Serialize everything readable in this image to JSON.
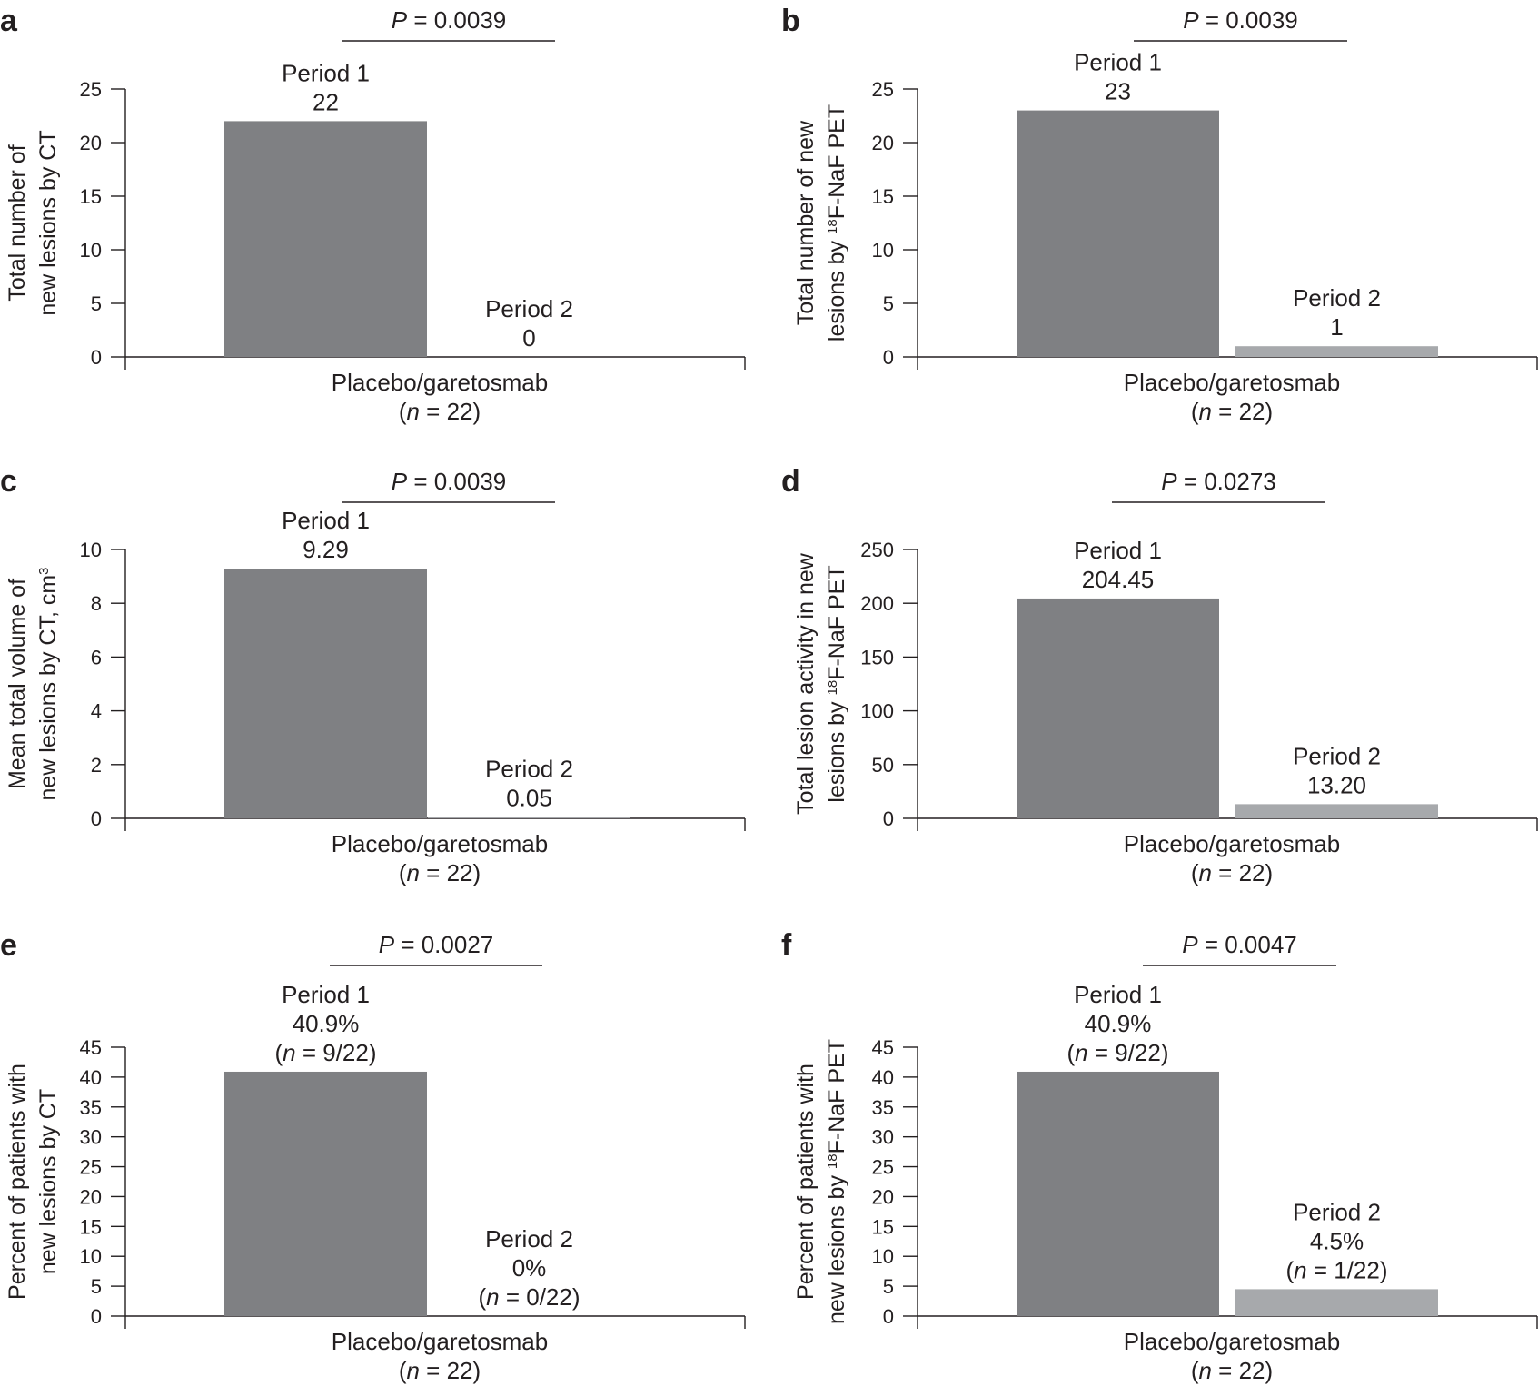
{
  "chart_data": [
    {
      "panel": "a",
      "type": "bar",
      "ylabel": [
        "Total number of",
        "new lesions by CT"
      ],
      "ylim": [
        0,
        25
      ],
      "yticks": [
        0,
        5,
        10,
        15,
        20,
        25
      ],
      "category": [
        "Placebo/garetosmab",
        "(n = 22)"
      ],
      "pvalue": "P = 0.0039",
      "series": [
        {
          "name": "Period 1",
          "value": 22,
          "label": [
            "Period 1",
            "22"
          ]
        },
        {
          "name": "Period 2",
          "value": 0,
          "label": [
            "Period 2",
            "0"
          ]
        }
      ]
    },
    {
      "panel": "b",
      "type": "bar",
      "ylabel": [
        "Total number of new",
        "lesions by 18F-NaF PET"
      ],
      "ylim": [
        0,
        25
      ],
      "yticks": [
        0,
        5,
        10,
        15,
        20,
        25
      ],
      "category": [
        "Placebo/garetosmab",
        "(n = 22)"
      ],
      "pvalue": "P = 0.0039",
      "series": [
        {
          "name": "Period 1",
          "value": 23,
          "label": [
            "Period 1",
            "23"
          ]
        },
        {
          "name": "Period 2",
          "value": 1,
          "label": [
            "Period 2",
            "1"
          ]
        }
      ]
    },
    {
      "panel": "c",
      "type": "bar",
      "ylabel": [
        "Mean total volume of",
        "new lesions by CT, cm3"
      ],
      "ylim": [
        0,
        10
      ],
      "yticks": [
        0,
        2,
        4,
        6,
        8,
        10
      ],
      "category": [
        "Placebo/garetosmab",
        "(n = 22)"
      ],
      "pvalue": "P = 0.0039",
      "series": [
        {
          "name": "Period 1",
          "value": 9.29,
          "label": [
            "Period 1",
            "9.29"
          ]
        },
        {
          "name": "Period 2",
          "value": 0.05,
          "label": [
            "Period 2",
            "0.05"
          ]
        }
      ]
    },
    {
      "panel": "d",
      "type": "bar",
      "ylabel": [
        "Total lesion activity in new",
        "lesions by 18F-NaF PET"
      ],
      "ylim": [
        0,
        250
      ],
      "yticks": [
        0,
        50,
        100,
        150,
        200,
        250
      ],
      "category": [
        "Placebo/garetosmab",
        "(n = 22)"
      ],
      "pvalue": "P = 0.0273",
      "series": [
        {
          "name": "Period 1",
          "value": 204.45,
          "label": [
            "Period 1",
            "204.45"
          ]
        },
        {
          "name": "Period 2",
          "value": 13.2,
          "label": [
            "Period 2",
            "13.20"
          ]
        }
      ]
    },
    {
      "panel": "e",
      "type": "bar",
      "ylabel": [
        "Percent of patients with",
        "new lesions by CT"
      ],
      "ylim": [
        0,
        45
      ],
      "yticks": [
        0,
        5,
        10,
        15,
        20,
        25,
        30,
        35,
        40,
        45
      ],
      "category": [
        "Placebo/garetosmab",
        "(n = 22)"
      ],
      "pvalue": "P = 0.0027",
      "series": [
        {
          "name": "Period 1",
          "value": 40.9,
          "label": [
            "Period 1",
            "40.9%",
            "(n = 9/22)"
          ]
        },
        {
          "name": "Period 2",
          "value": 0,
          "label": [
            "Period 2",
            "0%",
            "(n = 0/22)"
          ]
        }
      ]
    },
    {
      "panel": "f",
      "type": "bar",
      "ylabel": [
        "Percent of patients with",
        "new lesions by 18F-NaF PET"
      ],
      "ylim": [
        0,
        45
      ],
      "yticks": [
        0,
        5,
        10,
        15,
        20,
        25,
        30,
        35,
        40,
        45
      ],
      "category": [
        "Placebo/garetosmab",
        "(n = 22)"
      ],
      "pvalue": "P = 0.0047",
      "series": [
        {
          "name": "Period 1",
          "value": 40.9,
          "label": [
            "Period 1",
            "40.9%",
            "(n = 9/22)"
          ]
        },
        {
          "name": "Period 2",
          "value": 4.5,
          "label": [
            "Period 2",
            "4.5%",
            "(n = 1/22)"
          ]
        }
      ]
    }
  ],
  "colors": {
    "period1": "#7f8083",
    "period2": "#a7a9ac",
    "axis": "#231f20"
  }
}
